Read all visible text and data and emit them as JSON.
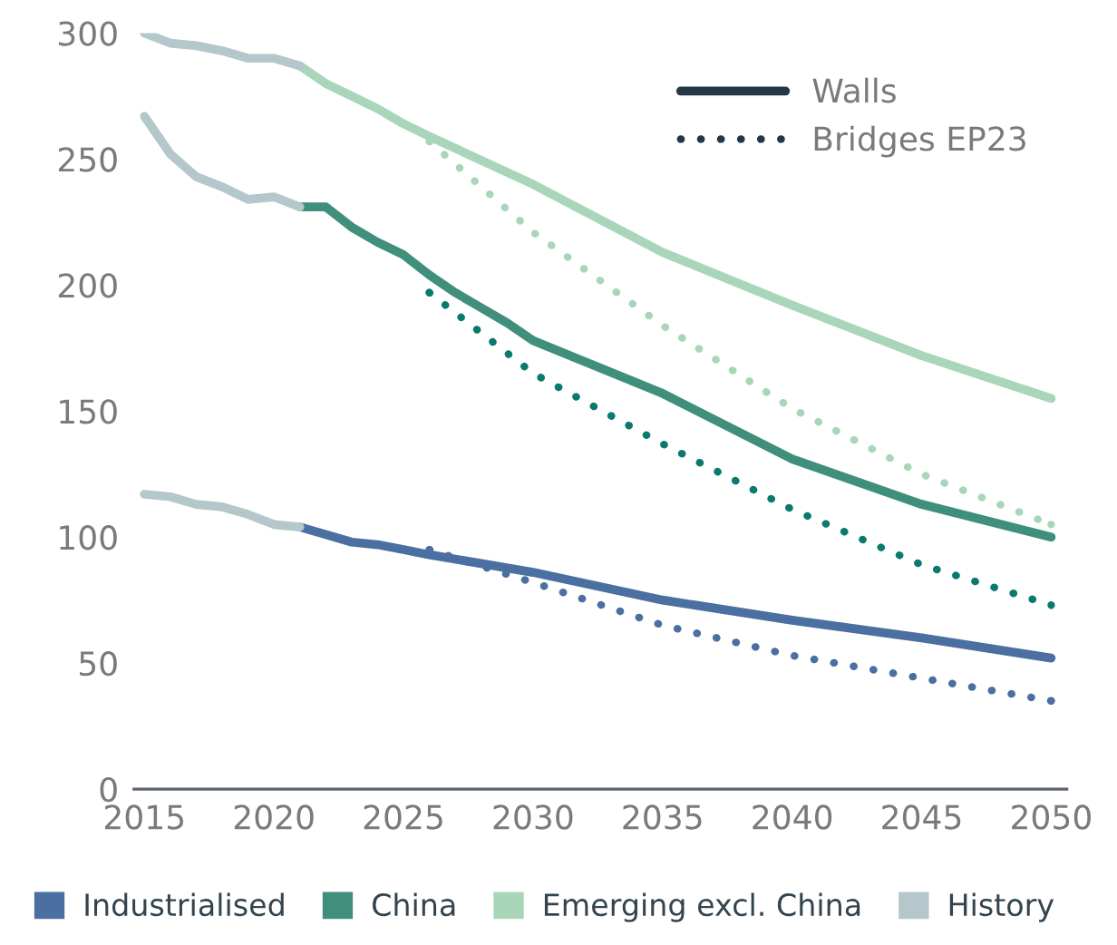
{
  "chart_data": {
    "type": "line",
    "xlim": [
      2014.6,
      2050.6
    ],
    "xticks": [
      2015,
      2020,
      2025,
      2030,
      2035,
      2040,
      2045,
      2050
    ],
    "ylim": [
      0,
      300
    ],
    "yticks": [
      0,
      50,
      100,
      150,
      200,
      250,
      300
    ],
    "grid": false,
    "legend": "bottom",
    "annotations": [
      "Walls",
      "Bridges EP23"
    ],
    "series": [
      {
        "name": "Industrialised",
        "color": "#4a6fa0",
        "line_style": "solid",
        "x": [
          2021,
          2022,
          2023,
          2024,
          2025,
          2026,
          2030,
          2035,
          2040,
          2045,
          2050
        ],
        "values": [
          104,
          101,
          98,
          97,
          95,
          93,
          86,
          75,
          67,
          60,
          52
        ]
      },
      {
        "name": "China",
        "color": "#3f8f7c",
        "line_style": "solid",
        "x": [
          2021,
          2022,
          2023,
          2024,
          2025,
          2026,
          2027,
          2028,
          2029,
          2030,
          2035,
          2040,
          2045,
          2050
        ],
        "values": [
          231,
          231,
          223,
          217,
          212,
          204,
          197,
          191,
          185,
          178,
          157,
          131,
          113,
          100
        ]
      },
      {
        "name": "Emerging excl. China",
        "color": "#a9d6b9",
        "line_style": "solid",
        "x": [
          2021,
          2022,
          2023,
          2024,
          2025,
          2026,
          2030,
          2035,
          2040,
          2045,
          2050
        ],
        "values": [
          287,
          280,
          275,
          270,
          264,
          259,
          240,
          213,
          192,
          172,
          155
        ]
      },
      {
        "name": "History",
        "color": "#b4c7ca",
        "line_style": "solid",
        "x": [
          2015,
          2016,
          2017,
          2018,
          2019,
          2020,
          2021
        ],
        "values": [
          117,
          116,
          113,
          112,
          109,
          105,
          104
        ]
      },
      {
        "color": "#b4c7ca",
        "line_style": "solid",
        "x": [
          2015,
          2016,
          2017,
          2018,
          2019,
          2020,
          2021
        ],
        "values": [
          267,
          252,
          243,
          239,
          234,
          235,
          231
        ]
      },
      {
        "color": "#b4c7ca",
        "line_style": "solid",
        "x": [
          2015,
          2016,
          2017,
          2018,
          2019,
          2020,
          2021
        ],
        "values": [
          300,
          296,
          295,
          293,
          290,
          290,
          287
        ]
      },
      {
        "color": "#4a6fa0",
        "line_style": "dotted",
        "x": [
          2026,
          2030,
          2035,
          2040,
          2045,
          2050
        ],
        "values": [
          95,
          82,
          65,
          53,
          44,
          35
        ]
      },
      {
        "color": "#0b7a6e",
        "line_style": "dotted",
        "x": [
          2026,
          2030,
          2035,
          2040,
          2045,
          2050
        ],
        "values": [
          197,
          165,
          137,
          111,
          89,
          73
        ]
      },
      {
        "color": "#a9d6b9",
        "line_style": "dotted",
        "x": [
          2026,
          2030,
          2035,
          2040,
          2045,
          2050
        ],
        "values": [
          257,
          221,
          184,
          151,
          125,
          105
        ]
      }
    ]
  }
}
